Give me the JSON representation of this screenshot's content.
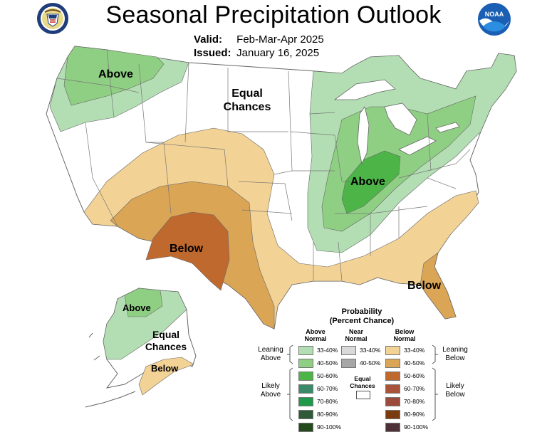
{
  "title": "Seasonal Precipitation Outlook",
  "valid_label": "Valid:",
  "valid_value": "Feb-Mar-Apr 2025",
  "issued_label": "Issued:",
  "issued_value": "January 16, 2025",
  "logos": {
    "left": "department-of-commerce-seal",
    "right": "noaa-logo",
    "noaa_text": "NOAA"
  },
  "map_labels": {
    "pnw_above": "Above",
    "equal_chances_1": "Equal",
    "equal_chances_2": "Chances",
    "ohio_above": "Above",
    "sw_below": "Below",
    "fl_below": "Below",
    "ak_above": "Above",
    "ak_equal_1": "Equal",
    "ak_equal_2": "Chances",
    "ak_below": "Below"
  },
  "legend": {
    "title_1": "Probability",
    "title_2": "(Percent Chance)",
    "col_above_1": "Above",
    "col_above_2": "Normal",
    "col_near_1": "Near",
    "col_near_2": "Normal",
    "col_below_1": "Below",
    "col_below_2": "Normal",
    "leaning_above_1": "Leaning",
    "leaning_above_2": "Above",
    "leaning_below_1": "Leaning",
    "leaning_below_2": "Below",
    "likely_above_1": "Likely",
    "likely_above_2": "Above",
    "likely_below_1": "Likely",
    "likely_below_2": "Below",
    "equal_1": "Equal",
    "equal_2": "Chances",
    "above": [
      {
        "label": "33-40%",
        "color": "#b3deb3"
      },
      {
        "label": "40-50%",
        "color": "#8fcf83"
      },
      {
        "label": "50-60%",
        "color": "#4db548"
      },
      {
        "label": "60-70%",
        "color": "#3a8a6a"
      },
      {
        "label": "70-80%",
        "color": "#1e9a4a"
      },
      {
        "label": "80-90%",
        "color": "#2f5a3a"
      },
      {
        "label": "90-100%",
        "color": "#234a1c"
      }
    ],
    "near": [
      {
        "label": "33-40%",
        "color": "#d9d9d9"
      },
      {
        "label": "40-50%",
        "color": "#a6a6a6"
      }
    ],
    "below": [
      {
        "label": "33-40%",
        "color": "#f3d295"
      },
      {
        "label": "40-50%",
        "color": "#dba556"
      },
      {
        "label": "50-60%",
        "color": "#c0692f"
      },
      {
        "label": "60-70%",
        "color": "#a9543a"
      },
      {
        "label": "70-80%",
        "color": "#9c4a3a"
      },
      {
        "label": "80-90%",
        "color": "#7a3c0f"
      },
      {
        "label": "90-100%",
        "color": "#4e3038"
      }
    ]
  },
  "colors": {
    "above_33": "#b3deb3",
    "above_40": "#8fcf83",
    "above_50": "#4db548",
    "below_33": "#f3d295",
    "below_40": "#dba556",
    "below_50": "#c0692f",
    "border": "#666666",
    "lake": "#ffffff"
  }
}
